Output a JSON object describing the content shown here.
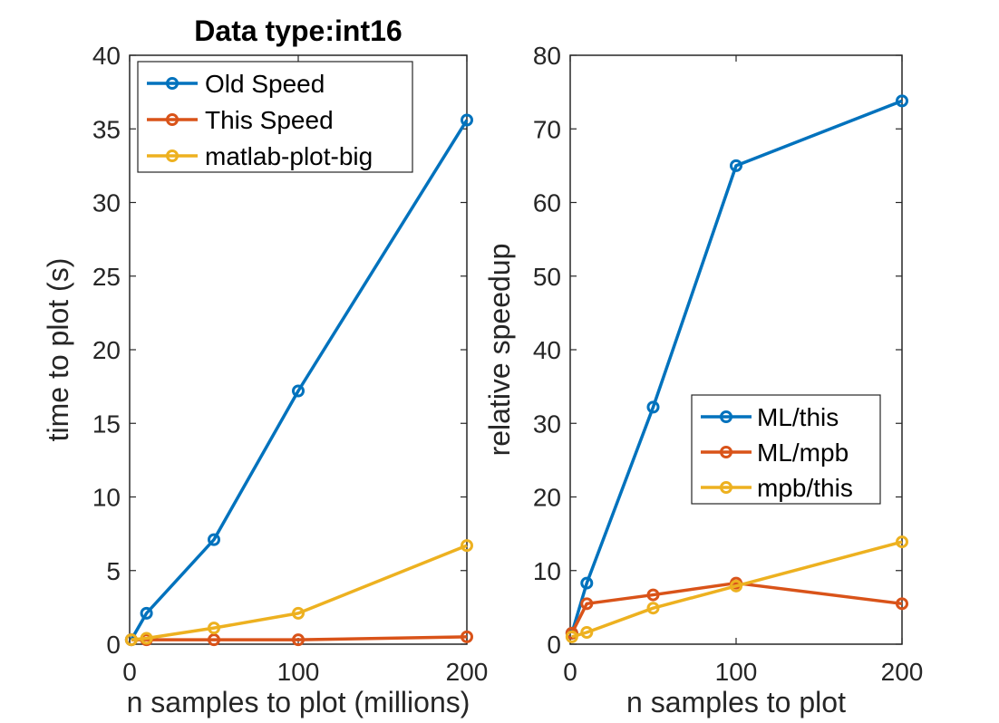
{
  "chart_data": [
    {
      "type": "line",
      "title": "Data type:int16",
      "xlabel": "n samples to plot (millions)",
      "ylabel": "time to plot (s)",
      "xlim": [
        0,
        200
      ],
      "ylim": [
        0,
        40
      ],
      "xticks": [
        0,
        100,
        200
      ],
      "yticks": [
        0,
        5,
        10,
        15,
        20,
        25,
        30,
        35,
        40
      ],
      "legend_position": "top-left",
      "series": [
        {
          "name": "Old Speed",
          "color": "#0072BD",
          "x": [
            1,
            10,
            50,
            100,
            200
          ],
          "y": [
            0.3,
            2.1,
            7.1,
            17.2,
            35.6
          ]
        },
        {
          "name": "This Speed",
          "color": "#D95319",
          "x": [
            1,
            10,
            50,
            100,
            200
          ],
          "y": [
            0.3,
            0.3,
            0.3,
            0.3,
            0.5
          ]
        },
        {
          "name": "matlab-plot-big",
          "color": "#EDB120",
          "x": [
            1,
            10,
            50,
            100,
            200
          ],
          "y": [
            0.3,
            0.4,
            1.1,
            2.1,
            6.7
          ]
        }
      ]
    },
    {
      "type": "line",
      "title": "",
      "xlabel": "n samples to plot",
      "ylabel": "relative speedup",
      "xlim": [
        0,
        200
      ],
      "ylim": [
        0,
        80
      ],
      "xticks": [
        0,
        100,
        200
      ],
      "yticks": [
        0,
        10,
        20,
        30,
        40,
        50,
        60,
        70,
        80
      ],
      "legend_position": "right-middle",
      "series": [
        {
          "name": "ML/this",
          "color": "#0072BD",
          "x": [
            1,
            10,
            50,
            100,
            200
          ],
          "y": [
            1.5,
            8.3,
            32.2,
            65.0,
            73.8
          ]
        },
        {
          "name": "ML/mpb",
          "color": "#D95319",
          "x": [
            1,
            10,
            50,
            100,
            200
          ],
          "y": [
            1.5,
            5.5,
            6.7,
            8.3,
            5.5
          ]
        },
        {
          "name": "mpb/this",
          "color": "#EDB120",
          "x": [
            1,
            10,
            50,
            100,
            200
          ],
          "y": [
            1.0,
            1.6,
            4.9,
            7.9,
            13.9
          ]
        }
      ]
    }
  ]
}
